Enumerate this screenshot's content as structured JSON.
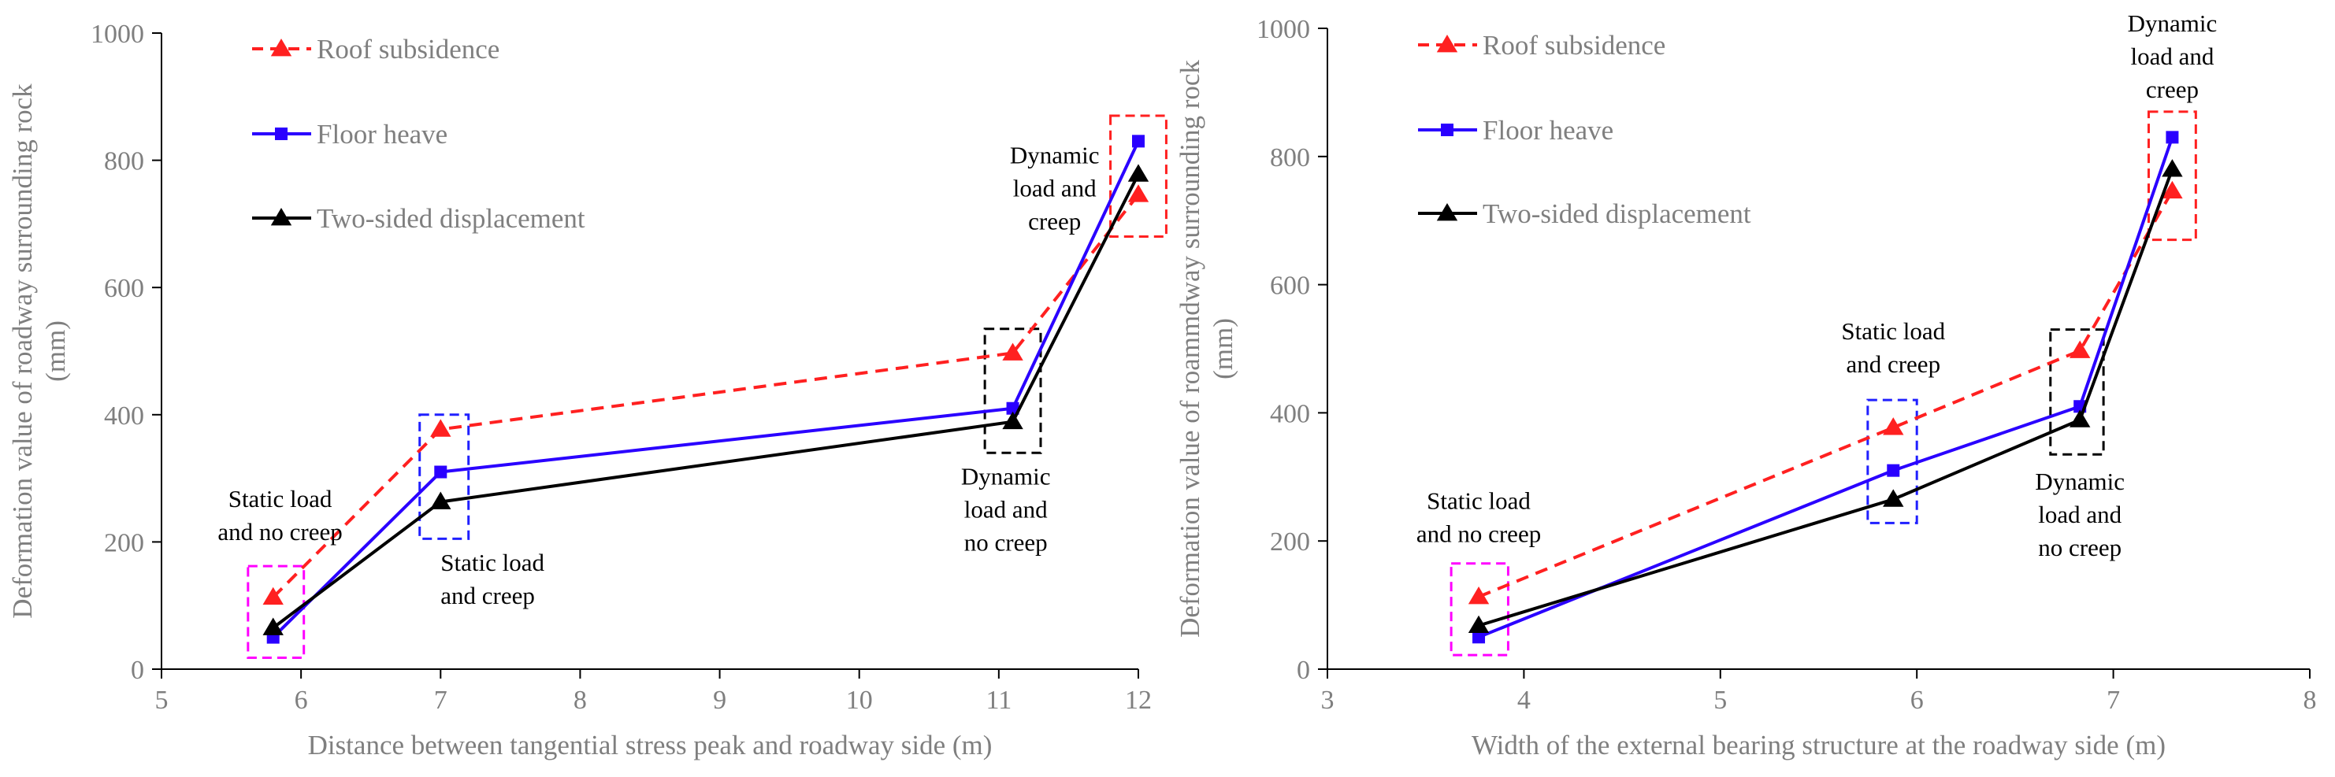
{
  "chart_data": [
    {
      "type": "line",
      "xlabel": "Distance between tangential stress peak and roadway side (m)",
      "ylabel": "Deformation value of roadway surrounding rock (mm)",
      "xlim": [
        5,
        12
      ],
      "ylim": [
        0,
        1000
      ],
      "xticks": [
        "5",
        "6",
        "7",
        "8",
        "9",
        "10",
        "11",
        "12"
      ],
      "yticks": [
        "0",
        "200",
        "400",
        "600",
        "800",
        "1000"
      ],
      "legend_position": "top-left",
      "series": [
        {
          "name": "Roof subsidence",
          "color": "#ff2020",
          "dash": true,
          "marker": "triangle",
          "x": [
            5.8,
            7.0,
            11.1,
            12.0
          ],
          "values": [
            113,
            377,
            497,
            746
          ]
        },
        {
          "name": "Floor heave",
          "color": "#2a00ff",
          "dash": false,
          "marker": "square",
          "x": [
            5.8,
            7.0,
            11.1,
            12.0
          ],
          "values": [
            50,
            310,
            410,
            830
          ]
        },
        {
          "name": "Two-sided displacement",
          "color": "#000000",
          "dash": false,
          "marker": "triangle",
          "x": [
            5.8,
            7.0,
            11.1,
            12.0
          ],
          "values": [
            65,
            263,
            389,
            778
          ]
        }
      ],
      "annotations": [
        {
          "lines": [
            "Static load",
            "and no creep"
          ],
          "color": "#ff00ff",
          "box_x": [
            5.62,
            6.02
          ],
          "box_y": [
            18,
            162
          ],
          "text_x": 5.85,
          "text_y": 255,
          "text_anchor": "middle"
        },
        {
          "lines": [
            "Static load",
            "and creep"
          ],
          "color": "#2020ff",
          "box_x": [
            6.85,
            7.2
          ],
          "box_y": [
            205,
            400
          ],
          "text_x": 7.0,
          "text_y": 155,
          "text_anchor": "start"
        },
        {
          "lines": [
            "Dynamic",
            "load and",
            "no creep"
          ],
          "color": "#000000",
          "box_x": [
            10.9,
            11.3
          ],
          "box_y": [
            340,
            535
          ],
          "text_x": 11.05,
          "text_y": 290,
          "text_anchor": "middle"
        },
        {
          "lines": [
            "Dynamic",
            "load and",
            "creep"
          ],
          "color": "#ff2020",
          "box_x": [
            11.8,
            12.2
          ],
          "box_y": [
            680,
            870
          ],
          "text_x": 11.4,
          "text_y": 795,
          "text_anchor": "middle"
        }
      ]
    },
    {
      "type": "line",
      "xlabel": "Width of the external bearing structure at the roadway side (m)",
      "ylabel": "Deformation value of roammdway surrounding rock (mm)",
      "xlim": [
        3,
        8
      ],
      "ylim": [
        0,
        1000
      ],
      "xticks": [
        "3",
        "4",
        "5",
        "6",
        "7",
        "8"
      ],
      "yticks": [
        "0",
        "200",
        "400",
        "600",
        "800",
        "1000"
      ],
      "legend_position": "top-left",
      "series": [
        {
          "name": "Roof subsidence",
          "color": "#ff2020",
          "dash": true,
          "marker": "triangle",
          "x": [
            3.77,
            5.88,
            6.83,
            7.3
          ],
          "values": [
            113,
            377,
            497,
            746
          ]
        },
        {
          "name": "Floor heave",
          "color": "#2a00ff",
          "dash": false,
          "marker": "square",
          "x": [
            3.77,
            5.88,
            6.83,
            7.3
          ],
          "values": [
            50,
            310,
            410,
            830
          ]
        },
        {
          "name": "Two-sided displacement",
          "color": "#000000",
          "dash": false,
          "marker": "triangle",
          "x": [
            3.77,
            5.88,
            6.83,
            7.3
          ],
          "values": [
            68,
            265,
            389,
            780
          ]
        }
      ],
      "annotations": [
        {
          "lines": [
            "Static load",
            "and no creep"
          ],
          "color": "#ff00ff",
          "box_x": [
            3.63,
            3.92
          ],
          "box_y": [
            22,
            165
          ],
          "text_x": 3.77,
          "text_y": 250,
          "text_anchor": "middle"
        },
        {
          "lines": [
            "Static load",
            "and creep"
          ],
          "color": "#2020ff",
          "box_x": [
            5.75,
            6.0
          ],
          "box_y": [
            228,
            420
          ],
          "text_x": 5.88,
          "text_y": 515,
          "text_anchor": "middle"
        },
        {
          "lines": [
            "Dynamic",
            "load and",
            "no creep"
          ],
          "color": "#000000",
          "box_x": [
            6.68,
            6.95
          ],
          "box_y": [
            335,
            530
          ],
          "text_x": 6.83,
          "text_y": 280,
          "text_anchor": "middle"
        },
        {
          "lines": [
            "Dynamic",
            "load and",
            "creep"
          ],
          "color": "#ff2020",
          "box_x": [
            7.18,
            7.42
          ],
          "box_y": [
            670,
            870
          ],
          "text_x": 7.3,
          "text_y": 995,
          "text_anchor": "middle"
        }
      ]
    }
  ]
}
